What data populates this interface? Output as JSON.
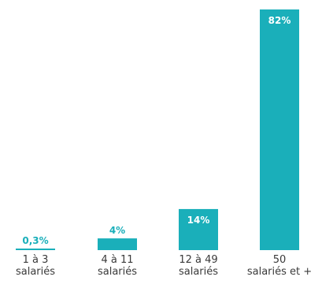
{
  "chart_data": {
    "type": "bar",
    "categories": [
      [
        "1 à 3",
        "salariés"
      ],
      [
        "4 à 11",
        "salariés"
      ],
      [
        "12 à 49",
        "salariés"
      ],
      [
        "50",
        "salariés et +"
      ]
    ],
    "values": [
      0.3,
      4,
      14,
      82
    ],
    "value_labels": [
      "0,3%",
      "4%",
      "14%",
      "82%"
    ],
    "ylim": [
      0,
      82
    ],
    "grid": false,
    "legend": "none",
    "colors": {
      "bar": "#1aafba",
      "label_inside": "#ffffff",
      "label_outside": "#1aafba",
      "text": "#3a3a3a"
    }
  }
}
